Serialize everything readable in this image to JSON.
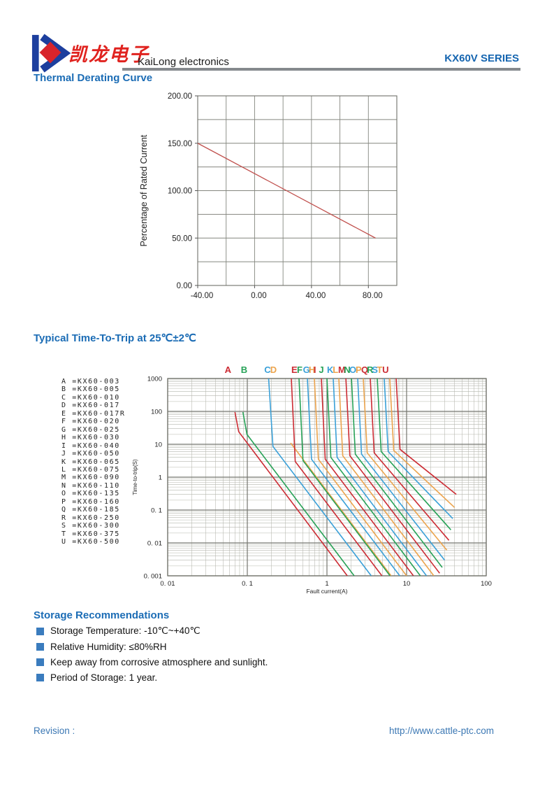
{
  "header": {
    "brand_cn": "凯龙电子",
    "brand_en": "KaiLong electronics",
    "series": "KX60V SERIES"
  },
  "sections": {
    "derating_title": "Thermal Derating Curve",
    "trip_title": "Typical Time-To-Trip at 25℃±2℃",
    "storage_title": "Storage Recommendations"
  },
  "storage": {
    "items": [
      "Storage Temperature: -10℃~+40℃",
      "Relative Humidity: ≤80%RH",
      "Keep away from corrosive atmosphere and sunlight.",
      "Period of Storage: 1 year."
    ]
  },
  "footer": {
    "revision_label": "Revision :",
    "url": "http://www.cattle-ptc.com"
  },
  "colors": {
    "heading_blue": "#1b6cb5",
    "series_blue": "#1565b0",
    "logo_blue": "#1d3f9e",
    "logo_red": "#d8242b",
    "bullet_blue": "#3a7cbe",
    "footer_blue": "#3c78b4",
    "derating_line_red": "#c0504d",
    "grid_major": "#75766f",
    "grid_minor": "#b5b6ad",
    "curve_red": "#cc2b33",
    "curve_green": "#27a257",
    "curve_blue": "#3aa0d8",
    "curve_orange": "#eca44d"
  },
  "chart_data": [
    {
      "id": "thermal_derating",
      "type": "line",
      "title": "Thermal Derating Curve",
      "xlabel": "",
      "ylabel": "Percentage of Rated Current",
      "xlim": [
        -40,
        100
      ],
      "ylim": [
        0,
        200
      ],
      "x_grid_step": 20,
      "y_grid_step": 25,
      "grid": true,
      "xticks": [
        {
          "v": -40,
          "label": "-40.00"
        },
        {
          "v": 0,
          "label": "0.00"
        },
        {
          "v": 40,
          "label": "40.00"
        },
        {
          "v": 80,
          "label": "80.00"
        }
      ],
      "yticks": [
        {
          "v": 0,
          "label": "0.00"
        },
        {
          "v": 50,
          "label": "50.00"
        },
        {
          "v": 100,
          "label": "100.00"
        },
        {
          "v": 150,
          "label": "150.00"
        },
        {
          "v": 200,
          "label": "200.00"
        }
      ],
      "series": [
        {
          "name": "derating-line",
          "color_key": "derating_line_red",
          "points": [
            [
              -40,
              150
            ],
            [
              85,
              50
            ]
          ]
        }
      ]
    },
    {
      "id": "time_to_trip",
      "type": "line",
      "scale": "log-log",
      "title": "Typical Time-To-Trip at 25℃±2℃",
      "xlabel": "Fault current(A)",
      "ylabel": "Time-to-trip(S)",
      "xlim": [
        0.01,
        100
      ],
      "ylim": [
        0.001,
        1000
      ],
      "grid": true,
      "xticks": [
        {
          "v": 0.01,
          "label": "0. 01"
        },
        {
          "v": 0.1,
          "label": "0. 1"
        },
        {
          "v": 1,
          "label": "1"
        },
        {
          "v": 10,
          "label": "10"
        },
        {
          "v": 100,
          "label": "100"
        }
      ],
      "yticks": [
        {
          "v": 1000,
          "label": "1000"
        },
        {
          "v": 100,
          "label": "100"
        },
        {
          "v": 10,
          "label": "10"
        },
        {
          "v": 1,
          "label": "1"
        },
        {
          "v": 0.1,
          "label": "0. 1"
        },
        {
          "v": 0.01,
          "label": "0. 01"
        },
        {
          "v": 0.001,
          "label": "0. 001"
        }
      ],
      "series": [
        {
          "letter": "A",
          "name": "KX60-003",
          "color_key": "curve_red",
          "letter_x": 0.052,
          "points": [
            [
              0.07,
              95
            ],
            [
              0.078,
              24
            ],
            [
              1.8,
              0.001
            ]
          ]
        },
        {
          "letter": "B",
          "name": "KX60-005",
          "color_key": "curve_green",
          "letter_x": 0.083,
          "points": [
            [
              0.088,
              95
            ],
            [
              0.099,
              20
            ],
            [
              2.2,
              0.001
            ]
          ]
        },
        {
          "letter": "C",
          "name": "KX60-010",
          "color_key": "curve_blue",
          "letter_x": 0.163,
          "points": [
            [
              0.185,
              1000
            ],
            [
              0.21,
              8.6
            ],
            [
              3.6,
              0.001
            ]
          ]
        },
        {
          "letter": "D",
          "name": "KX60-017",
          "color_key": "curve_orange",
          "letter_x": 0.194,
          "points": [
            [
              0.35,
              11
            ],
            [
              6.4,
              0.001
            ]
          ]
        },
        {
          "letter": "E",
          "name": "KX60-017R",
          "color_key": "curve_red",
          "letter_x": 0.357,
          "points": [
            [
              0.357,
              1000
            ],
            [
              0.4,
              3.0
            ],
            [
              4.9,
              0.001
            ]
          ]
        },
        {
          "letter": "F",
          "name": "KX60-020",
          "color_key": "curve_green",
          "letter_x": 0.42,
          "points": [
            [
              0.446,
              1000
            ],
            [
              0.5,
              3.2
            ],
            [
              6.2,
              0.001
            ]
          ]
        },
        {
          "letter": "G",
          "name": "KX60-025",
          "color_key": "curve_blue",
          "letter_x": 0.5,
          "points": [
            [
              0.568,
              1000
            ],
            [
              0.64,
              3.5
            ],
            [
              8.2,
              0.001
            ]
          ]
        },
        {
          "letter": "H",
          "name": "KX60-030",
          "color_key": "curve_orange",
          "letter_x": 0.59,
          "points": [
            [
              0.695,
              1000
            ],
            [
              0.78,
              3.5
            ],
            [
              10.0,
              0.001
            ]
          ]
        },
        {
          "letter": "I",
          "name": "KX60-040",
          "color_key": "curve_red",
          "letter_x": 0.68,
          "points": [
            [
              0.85,
              1000
            ],
            [
              0.95,
              3.5
            ],
            [
              12.2,
              0.001
            ]
          ]
        },
        {
          "letter": "J",
          "name": "KX60-050",
          "color_key": "curve_green",
          "letter_x": 0.79,
          "points": [
            [
              1.0,
              1000
            ],
            [
              1.12,
              4.0
            ],
            [
              14.9,
              0.001
            ]
          ]
        },
        {
          "letter": "K",
          "name": "KX60-065",
          "color_key": "curve_blue",
          "letter_x": 1.0,
          "points": [
            [
              1.2,
              1000
            ],
            [
              1.34,
              4.0
            ],
            [
              17.8,
              0.001
            ]
          ]
        },
        {
          "letter": "L",
          "name": "KX60-075",
          "color_key": "curve_orange",
          "letter_x": 1.18,
          "points": [
            [
              1.41,
              1000
            ],
            [
              1.58,
              4.5
            ],
            [
              22.0,
              0.001
            ]
          ]
        },
        {
          "letter": "M",
          "name": "KX60-090",
          "color_key": "curve_red",
          "letter_x": 1.38,
          "points": [
            [
              1.73,
              1000
            ],
            [
              1.94,
              4.5
            ],
            [
              26.0,
              0.0012
            ]
          ]
        },
        {
          "letter": "N",
          "name": "KX60-110",
          "color_key": "curve_green",
          "letter_x": 1.63,
          "points": [
            [
              2.03,
              1000
            ],
            [
              2.27,
              5.0
            ],
            [
              28.0,
              0.0018
            ]
          ]
        },
        {
          "letter": "O",
          "name": "KX60-135",
          "color_key": "curve_blue",
          "letter_x": 1.91,
          "points": [
            [
              2.43,
              1000
            ],
            [
              2.72,
              5.0
            ],
            [
              30.0,
              0.003
            ]
          ]
        },
        {
          "letter": "P",
          "name": "KX60-160",
          "color_key": "curve_orange",
          "letter_x": 2.29,
          "points": [
            [
              2.86,
              1000
            ],
            [
              3.2,
              5.5
            ],
            [
              32.0,
              0.006
            ]
          ]
        },
        {
          "letter": "Q",
          "name": "KX60-185",
          "color_key": "curve_red",
          "letter_x": 2.69,
          "points": [
            [
              3.5,
              1000
            ],
            [
              3.92,
              5.5
            ],
            [
              34.0,
              0.012
            ]
          ]
        },
        {
          "letter": "R",
          "name": "KX60-250",
          "color_key": "curve_green",
          "letter_x": 3.17,
          "points": [
            [
              4.28,
              1000
            ],
            [
              4.79,
              6.0
            ],
            [
              36.0,
              0.025
            ]
          ]
        },
        {
          "letter": "S",
          "name": "KX60-300",
          "color_key": "curve_blue",
          "letter_x": 3.66,
          "points": [
            [
              5.24,
              1000
            ],
            [
              5.87,
              6.0
            ],
            [
              38.0,
              0.055
            ]
          ]
        },
        {
          "letter": "T",
          "name": "KX60-375",
          "color_key": "curve_orange",
          "letter_x": 4.23,
          "points": [
            [
              6.15,
              1000
            ],
            [
              6.89,
              6.5
            ],
            [
              40.0,
              0.12
            ]
          ]
        },
        {
          "letter": "U",
          "name": "KX60-500",
          "color_key": "curve_red",
          "letter_x": 4.95,
          "points": [
            [
              7.38,
              1000
            ],
            [
              8.27,
              7.0
            ],
            [
              42.0,
              0.3
            ]
          ]
        }
      ]
    }
  ]
}
